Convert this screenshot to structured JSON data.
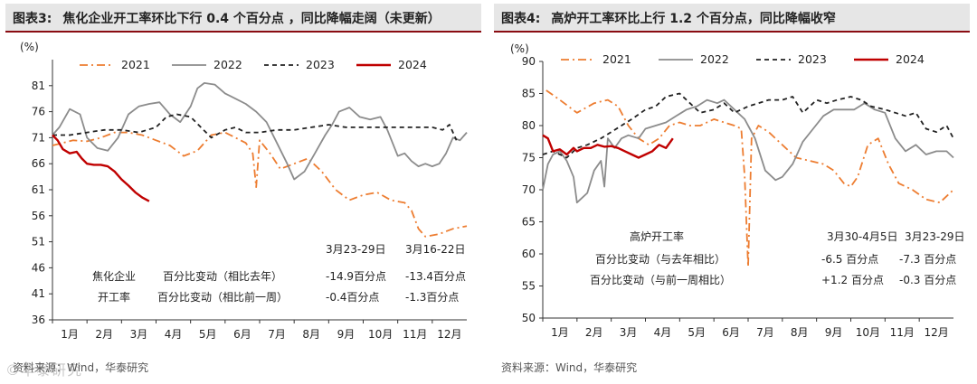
{
  "panels": [
    {
      "title_num": "图表3:",
      "title": "焦化企业开工率环比下行 0.4 个百分点 ，同比降幅走阔（未更新）",
      "source": "资料来源：Wind，华泰研究",
      "watermark": "©华泰研究",
      "chart_data": {
        "type": "line",
        "ylabel": "(%)",
        "ylim": [
          36,
          86
        ],
        "yticks": [
          36,
          41,
          46,
          51,
          56,
          61,
          66,
          71,
          76,
          81
        ],
        "xlim": [
          1,
          13
        ],
        "xticks": [
          "1月",
          "2月",
          "3月",
          "4月",
          "5月",
          "6月",
          "7月",
          "8月",
          "9月",
          "10月",
          "11月",
          "12月"
        ],
        "series": [
          {
            "name": "2021",
            "color": "#ed7d31",
            "style": "dashdot",
            "x": [
              1,
              1.3,
              1.6,
              2.0,
              2.4,
              2.8,
              3.2,
              3.6,
              4.0,
              4.4,
              4.8,
              5.2,
              5.6,
              6.0,
              6.3,
              6.6,
              6.8,
              6.9,
              7.0,
              7.3,
              7.6,
              8.0,
              8.4,
              8.8,
              9.2,
              9.6,
              10.0,
              10.4,
              10.8,
              11.2,
              11.4,
              11.6,
              11.8,
              12.2,
              12.6,
              13.0
            ],
            "values": [
              69.5,
              70,
              70.5,
              70.3,
              71,
              72,
              72,
              71.5,
              70.5,
              69.5,
              67.5,
              68.5,
              71.5,
              72,
              71,
              70,
              68,
              61.5,
              70.5,
              68,
              65,
              66,
              67,
              64.5,
              61,
              59,
              60,
              60.5,
              59,
              58.5,
              57,
              53.5,
              52,
              52.5,
              53.5,
              54
            ]
          },
          {
            "name": "2022",
            "color": "#8c8c8c",
            "style": "solid",
            "x": [
              1,
              1.2,
              1.5,
              1.8,
              2.0,
              2.3,
              2.6,
              2.9,
              3.2,
              3.5,
              3.8,
              4.1,
              4.4,
              4.7,
              5.0,
              5.2,
              5.4,
              5.7,
              6.0,
              6.3,
              6.6,
              6.9,
              7.2,
              7.5,
              7.8,
              8.0,
              8.3,
              8.6,
              8.9,
              9.1,
              9.3,
              9.6,
              9.9,
              10.2,
              10.5,
              10.7,
              11.0,
              11.2,
              11.4,
              11.6,
              11.8,
              12.0,
              12.2,
              12.4,
              12.6,
              12.8,
              13.0
            ],
            "values": [
              71.5,
              73,
              76.5,
              75.5,
              71,
              69,
              68.5,
              71,
              75.5,
              77,
              77.5,
              77.8,
              75.5,
              74,
              77,
              80.5,
              81.5,
              81.2,
              79.5,
              78.5,
              77.5,
              76,
              74,
              70,
              66,
              63,
              64.5,
              68,
              71.5,
              73.5,
              76,
              76.8,
              75,
              74.5,
              75,
              72.5,
              67.5,
              68,
              66.5,
              65.5,
              66,
              65.5,
              66,
              68,
              71,
              70.5,
              72
            ]
          },
          {
            "name": "2023",
            "color": "#222222",
            "style": "dashed",
            "x": [
              1,
              1.5,
              2.0,
              2.5,
              3.0,
              3.5,
              4.0,
              4.3,
              4.6,
              5.0,
              5.3,
              5.6,
              6.0,
              6.3,
              6.6,
              7.0,
              7.5,
              8.0,
              8.5,
              9.0,
              9.5,
              10.0,
              10.5,
              11.0,
              11.5,
              12.0,
              12.3,
              12.5,
              12.7
            ],
            "values": [
              71.5,
              71.5,
              72,
              72.5,
              72.5,
              72,
              73,
              75,
              75.5,
              75,
              73,
              71,
              72.5,
              73,
              72,
              72,
              72.5,
              72.5,
              73,
              73.5,
              73,
              73,
              73,
              73,
              73,
              73,
              72.5,
              73.5,
              70.5
            ]
          },
          {
            "name": "2024",
            "color": "#c00000",
            "style": "solid",
            "x": [
              1,
              1.15,
              1.3,
              1.5,
              1.7,
              1.85,
              2.0,
              2.2,
              2.4,
              2.6,
              2.8,
              3.0,
              3.2,
              3.4,
              3.6,
              3.8
            ],
            "values": [
              71.5,
              70.5,
              68.8,
              68,
              68.3,
              67,
              66,
              65.8,
              65.8,
              65.5,
              64.5,
              63,
              61.8,
              60.5,
              59.5,
              58.8
            ]
          }
        ]
      },
      "annotation": {
        "col_headers": [
          "3月23-29日",
          "3月16-22日"
        ],
        "row_group": [
          "焦化企业",
          "开工率"
        ],
        "rows": [
          {
            "label": "百分比变动（相比去年）",
            "values": [
              "-14.9百分点",
              "-13.4百分点"
            ]
          },
          {
            "label": "百分比变动（相比前一周）",
            "values": [
              "-0.4百分点",
              "-1.3百分点"
            ]
          }
        ]
      }
    },
    {
      "title_num": "图表4:",
      "title": "高炉开工率环比上行 1.2 个百分点，同比降幅收窄",
      "source": "资料来源：Wind，华泰研究",
      "watermark": "",
      "chart_data": {
        "type": "line",
        "ylabel": "(%)",
        "ylim": [
          50,
          90
        ],
        "yticks": [
          50,
          55,
          60,
          65,
          70,
          75,
          80,
          85,
          90
        ],
        "xlim": [
          1,
          13
        ],
        "xticks": [
          "1月",
          "2月",
          "3月",
          "4月",
          "5月",
          "6月",
          "7月",
          "8月",
          "9月",
          "10月",
          "11月",
          "12月"
        ],
        "series": [
          {
            "name": "2021",
            "color": "#ed7d31",
            "style": "dashdot",
            "x": [
              1.1,
              1.5,
              2.0,
              2.5,
              2.9,
              3.2,
              3.5,
              3.8,
              4.1,
              4.4,
              4.7,
              5.0,
              5.3,
              5.6,
              6.0,
              6.3,
              6.6,
              6.8,
              6.9,
              7.0,
              7.1,
              7.3,
              7.6,
              8.0,
              8.4,
              8.8,
              9.2,
              9.5,
              9.8,
              10.0,
              10.2,
              10.5,
              10.8,
              11.1,
              11.4,
              11.8,
              12.2,
              12.6,
              13.0
            ],
            "values": [
              85.5,
              84,
              82,
              83.5,
              84,
              83,
              80,
              78,
              77,
              78,
              80,
              80.5,
              80,
              80,
              81,
              80.5,
              80,
              79.5,
              72,
              58,
              78,
              80,
              79,
              77,
              75,
              74.5,
              74,
              73,
              71,
              70.5,
              72,
              77,
              78,
              74,
              71,
              70,
              68.5,
              68,
              70
            ]
          },
          {
            "name": "2022",
            "color": "#8c8c8c",
            "style": "solid",
            "x": [
              1,
              1.15,
              1.3,
              1.5,
              1.7,
              1.9,
              2.0,
              2.1,
              2.3,
              2.5,
              2.7,
              2.8,
              2.9,
              3.1,
              3.3,
              3.5,
              3.8,
              4.0,
              4.3,
              4.6,
              4.9,
              5.2,
              5.5,
              5.8,
              6.1,
              6.3,
              6.6,
              6.9,
              7.2,
              7.5,
              7.8,
              8.0,
              8.3,
              8.6,
              8.9,
              9.2,
              9.5,
              9.8,
              10.1,
              10.4,
              10.7,
              11.0,
              11.3,
              11.6,
              11.9,
              12.2,
              12.5,
              12.8,
              13.0
            ],
            "values": [
              70,
              74,
              75.5,
              76,
              74.5,
              72,
              68,
              68.5,
              69.5,
              73,
              74.5,
              70.5,
              78,
              76.5,
              78,
              78.5,
              78,
              79.5,
              80,
              80.5,
              81.5,
              82.5,
              83,
              84,
              83.5,
              84,
              82.5,
              81,
              78,
              73,
              71.5,
              72,
              74,
              77.5,
              79.5,
              81.5,
              82.5,
              82.5,
              82.5,
              83.5,
              82.5,
              82,
              78,
              76,
              77,
              75.5,
              76,
              76,
              75
            ]
          },
          {
            "name": "2023",
            "color": "#222222",
            "style": "dashed",
            "x": [
              1,
              1.3,
              1.7,
              2.0,
              2.3,
              2.7,
              3.0,
              3.3,
              3.6,
              4.0,
              4.3,
              4.6,
              5.0,
              5.3,
              5.6,
              6.0,
              6.3,
              6.6,
              7.0,
              7.3,
              7.6,
              8.0,
              8.3,
              8.6,
              9.0,
              9.3,
              9.6,
              10.0,
              10.3,
              10.6,
              11.0,
              11.3,
              11.6,
              11.9,
              12.2,
              12.5,
              12.8,
              13.0
            ],
            "values": [
              75.5,
              76,
              75,
              76.5,
              77,
              78,
              79,
              80,
              81,
              82.5,
              83,
              84.5,
              85,
              83.5,
              82,
              82.5,
              83.5,
              82,
              83,
              83.5,
              84,
              84,
              84.5,
              82,
              84,
              83.5,
              84,
              84.5,
              84,
              83,
              82.5,
              82,
              81.5,
              82,
              79.5,
              79,
              80,
              78
            ]
          },
          {
            "name": "2024",
            "color": "#c00000",
            "style": "solid",
            "x": [
              1,
              1.15,
              1.3,
              1.5,
              1.7,
              1.9,
              2.0,
              2.2,
              2.4,
              2.6,
              2.8,
              3.0,
              3.2,
              3.4,
              3.6,
              3.8,
              4.0,
              4.2,
              4.4,
              4.6,
              4.8
            ],
            "values": [
              78.5,
              78,
              76,
              76.3,
              75.5,
              76.5,
              76,
              76.5,
              76.5,
              77,
              76.7,
              76.8,
              76.5,
              76,
              75.5,
              75,
              75.5,
              76,
              77,
              76.5,
              78
            ]
          }
        ]
      },
      "annotation": {
        "col_headers": [
          "3月30-4月5日",
          "3月23-29日"
        ],
        "row_group": [
          "高炉开工率"
        ],
        "rows": [
          {
            "label": "百分比变动（与去年相比）",
            "values": [
              "-6.5 百分点",
              "-7.3 百分点"
            ]
          },
          {
            "label": "百分比变动（与前一周相比）",
            "values": [
              "+1.2 百分点",
              "-0.3 百分点"
            ]
          }
        ]
      }
    }
  ]
}
